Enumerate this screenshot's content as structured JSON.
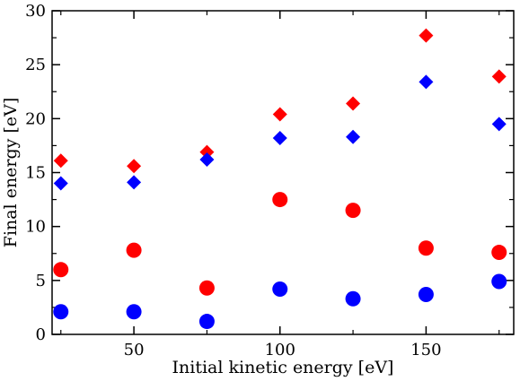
{
  "chart_data": {
    "type": "scatter",
    "xlabel": "Initial kinetic energy [eV]",
    "ylabel": "Final energy [eV]",
    "xlim": [
      22,
      180
    ],
    "ylim": [
      0,
      30
    ],
    "xticks": [
      50,
      100,
      150
    ],
    "yticks": [
      0,
      5,
      10,
      15,
      20,
      25,
      30
    ],
    "grid": false,
    "series": [
      {
        "marker": "diamond",
        "color": "#ff0000",
        "points": [
          [
            25,
            16.1
          ],
          [
            50,
            15.6
          ],
          [
            75,
            16.9
          ],
          [
            100,
            20.4
          ],
          [
            125,
            21.4
          ],
          [
            150,
            27.7
          ],
          [
            175,
            23.9
          ]
        ]
      },
      {
        "marker": "diamond",
        "color": "#0000ff",
        "points": [
          [
            25,
            14.0
          ],
          [
            50,
            14.1
          ],
          [
            75,
            16.2
          ],
          [
            100,
            18.2
          ],
          [
            125,
            18.3
          ],
          [
            150,
            23.4
          ],
          [
            175,
            19.5
          ]
        ]
      },
      {
        "marker": "circle",
        "color": "#ff0000",
        "points": [
          [
            25,
            6.0
          ],
          [
            50,
            7.8
          ],
          [
            75,
            4.3
          ],
          [
            100,
            12.5
          ],
          [
            125,
            11.5
          ],
          [
            150,
            8.0
          ],
          [
            175,
            7.6
          ]
        ]
      },
      {
        "marker": "circle",
        "color": "#0000ff",
        "points": [
          [
            25,
            2.1
          ],
          [
            50,
            2.1
          ],
          [
            75,
            1.2
          ],
          [
            100,
            4.2
          ],
          [
            125,
            3.3
          ],
          [
            150,
            3.7
          ],
          [
            175,
            4.9
          ]
        ]
      }
    ]
  }
}
